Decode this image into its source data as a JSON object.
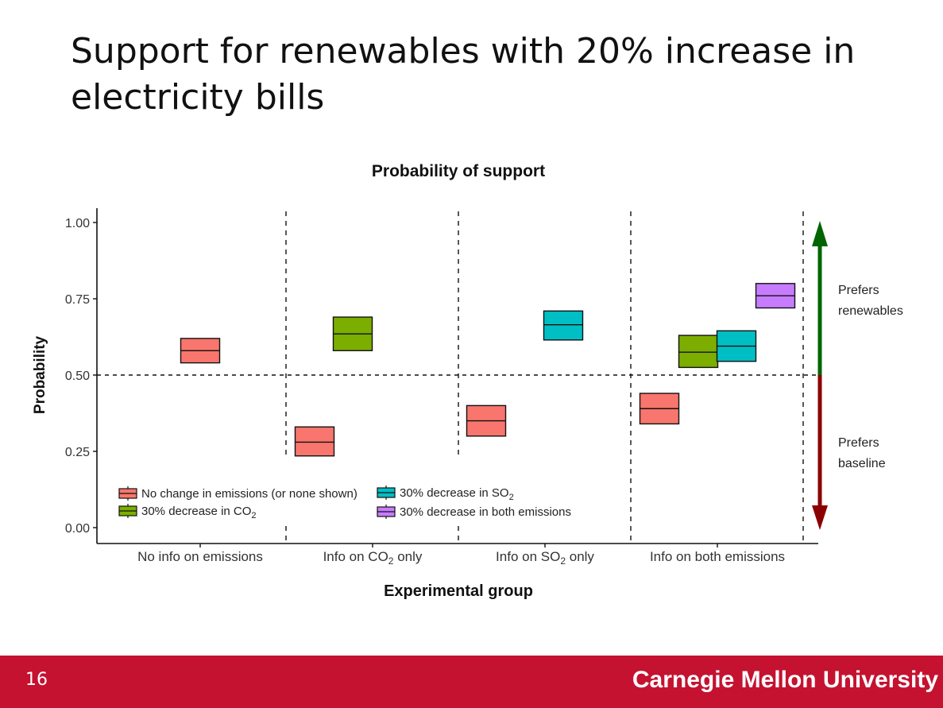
{
  "slide": {
    "title": "Support for renewables with 20% increase in electricity bills",
    "page_number": "16",
    "footer_text": "Carnegie Mellon University",
    "footer_color": "#c41230"
  },
  "chart_data": {
    "type": "crossbar",
    "title": "Probability of support",
    "xlabel": "Experimental group",
    "ylabel": "Probability",
    "ylim": [
      0,
      1
    ],
    "yticks": [
      "0.00",
      "0.25",
      "0.50",
      "0.75",
      "1.00"
    ],
    "reference_line": 0.5,
    "grid": false,
    "categories": [
      {
        "pre": "No info on emissions",
        "sub": "",
        "post": ""
      },
      {
        "pre": "Info on CO",
        "sub": "2",
        "post": " only"
      },
      {
        "pre": "Info on SO",
        "sub": "2",
        "post": " only"
      },
      {
        "pre": "Info on both emissions",
        "sub": "",
        "post": ""
      }
    ],
    "series": [
      {
        "key": "none",
        "name": {
          "pre": "No change in emissions (or none shown)",
          "sub": "",
          "post": ""
        },
        "color": "#f8766d",
        "points": [
          {
            "group": 0,
            "mean": 0.58,
            "low": 0.54,
            "high": 0.62
          },
          {
            "group": 1,
            "mean": 0.28,
            "low": 0.235,
            "high": 0.33
          },
          {
            "group": 2,
            "mean": 0.35,
            "low": 0.3,
            "high": 0.4
          },
          {
            "group": 3,
            "mean": 0.39,
            "low": 0.34,
            "high": 0.44
          }
        ]
      },
      {
        "key": "co2",
        "name": {
          "pre": "30% decrease in CO",
          "sub": "2",
          "post": ""
        },
        "color": "#7cae00",
        "points": [
          {
            "group": 1,
            "mean": 0.635,
            "low": 0.58,
            "high": 0.69
          },
          {
            "group": 3,
            "mean": 0.575,
            "low": 0.525,
            "high": 0.63
          }
        ]
      },
      {
        "key": "so2",
        "name": {
          "pre": "30% decrease in SO",
          "sub": "2",
          "post": ""
        },
        "color": "#00bfc4",
        "points": [
          {
            "group": 2,
            "mean": 0.665,
            "low": 0.615,
            "high": 0.71
          },
          {
            "group": 3,
            "mean": 0.595,
            "low": 0.545,
            "high": 0.645
          }
        ]
      },
      {
        "key": "both",
        "name": {
          "pre": "30% decrease in both emissions",
          "sub": "",
          "post": ""
        },
        "color": "#c77cff",
        "points": [
          {
            "group": 3,
            "mean": 0.76,
            "low": 0.72,
            "high": 0.8
          }
        ]
      }
    ],
    "legend": {
      "placement": "bottom-left"
    },
    "annotations": {
      "up": {
        "lines": [
          "Prefers",
          "renewables"
        ],
        "color": "#006400"
      },
      "down": {
        "lines": [
          "Prefers",
          "baseline"
        ],
        "color": "#8b0000"
      }
    }
  }
}
